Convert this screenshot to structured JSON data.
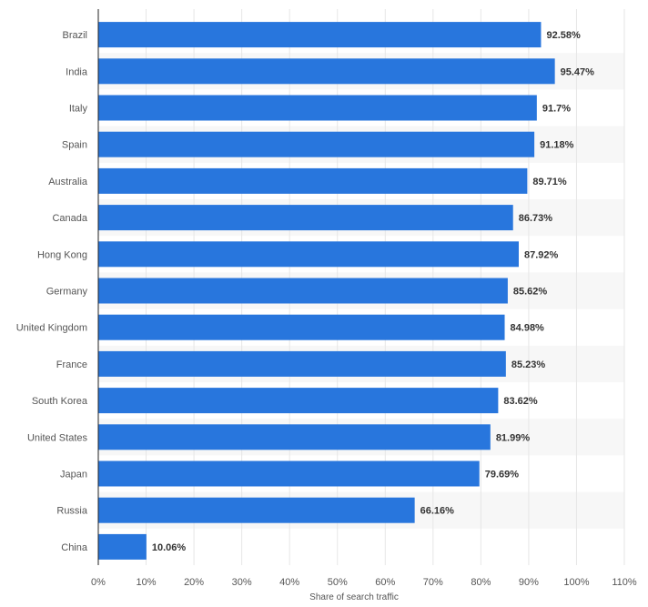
{
  "chart_data": {
    "type": "bar",
    "orientation": "horizontal",
    "categories": [
      "Brazil",
      "India",
      "Italy",
      "Spain",
      "Australia",
      "Canada",
      "Hong Kong",
      "Germany",
      "United Kingdom",
      "France",
      "South Korea",
      "United States",
      "Japan",
      "Russia",
      "China"
    ],
    "values": [
      92.58,
      95.47,
      91.7,
      91.18,
      89.71,
      86.73,
      87.92,
      85.62,
      84.98,
      85.23,
      83.62,
      81.99,
      79.69,
      66.16,
      10.06
    ],
    "value_labels": [
      "92.58%",
      "95.47%",
      "91.7%",
      "91.18%",
      "89.71%",
      "86.73%",
      "87.92%",
      "85.62%",
      "84.98%",
      "85.23%",
      "83.62%",
      "81.99%",
      "79.69%",
      "66.16%",
      "10.06%"
    ],
    "xlabel": "Share of search traffic",
    "ylabel": "",
    "xlim": [
      0,
      110
    ],
    "xticks": [
      0,
      10,
      20,
      30,
      40,
      50,
      60,
      70,
      80,
      90,
      100,
      110
    ],
    "xtick_labels": [
      "0%",
      "10%",
      "20%",
      "30%",
      "40%",
      "50%",
      "60%",
      "70%",
      "80%",
      "90%",
      "100%",
      "110%"
    ],
    "grid": true,
    "legend": "none",
    "colors": {
      "bar": "#2876dd",
      "grid": "#e6e6e6",
      "band": "#f7f7f7",
      "axis": "#222222",
      "label": "#555555",
      "value_label": "#333333"
    }
  }
}
